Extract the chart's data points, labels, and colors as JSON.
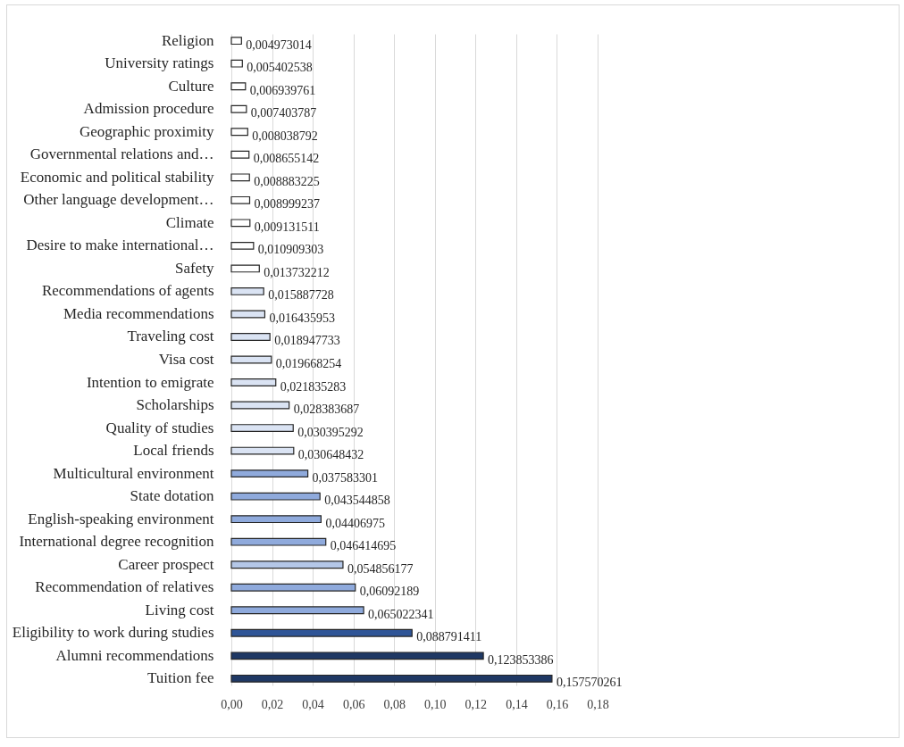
{
  "chart_data": {
    "type": "bar",
    "orientation": "horizontal",
    "categories": [
      "Religion",
      "University ratings",
      "Culture",
      "Admission procedure",
      "Geographic proximity",
      "Governmental  relations and…",
      "Economic and political stability",
      "Other language development…",
      "Climate",
      "Desire to make international…",
      "Safety",
      "Recommendations of agents ",
      "Media recommendations",
      "Traveling cost",
      "Visa cost",
      "Intention to emigrate",
      "Scholarships",
      "Quality of studies",
      "Local friends",
      "Multicultural environment",
      "State dotation",
      "English-speaking environment",
      "International degree recognition ",
      "Career prospect",
      "Recommendation of relatives",
      "Living cost",
      "Eligibility to work during studies",
      "Alumni recommendations",
      "Tuition fee"
    ],
    "values": [
      0.004973014,
      0.005402538,
      0.006939761,
      0.007403787,
      0.008038792,
      0.008655142,
      0.008883225,
      0.008999237,
      0.009131511,
      0.010909303,
      0.013732212,
      0.015887728,
      0.016435953,
      0.018947733,
      0.019668254,
      0.021835283,
      0.028383687,
      0.030395292,
      0.030648432,
      0.037583301,
      0.043544858,
      0.04406975,
      0.046414695,
      0.054856177,
      0.06092189,
      0.065022341,
      0.088791411,
      0.123853386,
      0.157570261
    ],
    "value_labels": [
      "0,004973014",
      "0,005402538",
      "0,006939761",
      "0,007403787",
      "0,008038792",
      "0,008655142",
      "0,008883225",
      "0,008999237",
      "0,009131511",
      "0,010909303",
      "0,013732212",
      "0,015887728",
      "0,016435953",
      "0,018947733",
      "0,019668254",
      "0,021835283",
      "0,028383687",
      "0,030395292",
      "0,030648432",
      "0,037583301",
      "0,043544858",
      "0,04406975",
      "0,046414695",
      "0,054856177",
      "0,06092189",
      "0,065022341",
      "0,088791411",
      "0,123853386",
      "0,157570261"
    ],
    "colors": [
      "#ffffff",
      "#ffffff",
      "#ffffff",
      "#ffffff",
      "#ffffff",
      "#ffffff",
      "#ffffff",
      "#ffffff",
      "#ffffff",
      "#ffffff",
      "#ffffff",
      "#dae3f3",
      "#dae3f3",
      "#dae3f3",
      "#dae3f3",
      "#dae3f3",
      "#dae3f3",
      "#dae3f3",
      "#dae3f3",
      "#8faadc",
      "#8faadc",
      "#8faadc",
      "#8faadc",
      "#b4c7e7",
      "#8faadc",
      "#8faadc",
      "#2f5597",
      "#1f3864",
      "#1f3864"
    ],
    "xlim": [
      0,
      0.18
    ],
    "xticks": [
      {
        "value": 0,
        "label": "0,00"
      },
      {
        "value": 0.02,
        "label": "0,02"
      },
      {
        "value": 0.04,
        "label": "0,04"
      },
      {
        "value": 0.06,
        "label": "0,06"
      },
      {
        "value": 0.08,
        "label": "0,08"
      },
      {
        "value": 0.1,
        "label": "0,10"
      },
      {
        "value": 0.12,
        "label": "0,12"
      },
      {
        "value": 0.14,
        "label": "0,14"
      },
      {
        "value": 0.16,
        "label": "0,16"
      },
      {
        "value": 0.18,
        "label": "0,18"
      }
    ],
    "grid": "x"
  }
}
